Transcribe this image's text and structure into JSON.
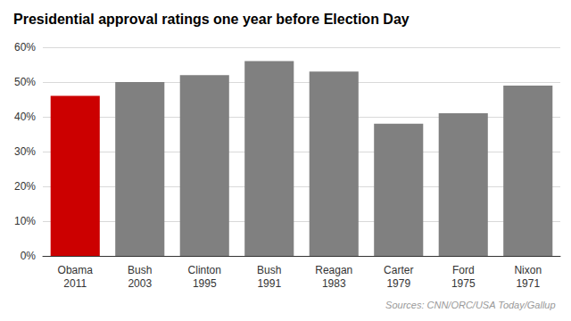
{
  "chart_data": {
    "type": "bar",
    "title": "Presidential approval ratings one year before Election Day",
    "categories": [
      "Obama\n2011",
      "Bush\n2003",
      "Clinton\n1995",
      "Bush\n1991",
      "Reagan\n1983",
      "Carter\n1979",
      "Ford\n1975",
      "Nixon\n1971"
    ],
    "values": [
      46,
      50,
      52,
      56,
      53,
      38,
      41,
      49
    ],
    "colors": [
      "#cc0000",
      "#808080",
      "#808080",
      "#808080",
      "#808080",
      "#808080",
      "#808080",
      "#808080"
    ],
    "ylim": [
      0,
      60
    ],
    "yticks": [
      {
        "value": 0,
        "label": "0%"
      },
      {
        "value": 10,
        "label": "10%"
      },
      {
        "value": 20,
        "label": "20%"
      },
      {
        "value": 30,
        "label": "30%"
      },
      {
        "value": 40,
        "label": "40%"
      },
      {
        "value": 50,
        "label": "50%"
      },
      {
        "value": 60,
        "label": "60%"
      }
    ],
    "grid": true,
    "annotations": [
      "Sources: CNN/ORC/USA Today/Gallup"
    ]
  }
}
